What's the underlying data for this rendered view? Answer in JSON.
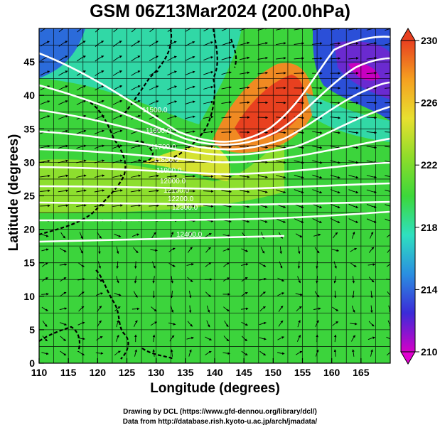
{
  "title": "GSM 06Z13Mar2024 (200.0hPa)",
  "x_axis": {
    "label": "Longitude (degrees)",
    "range": [
      110,
      170
    ],
    "ticks": [
      110,
      115,
      120,
      125,
      130,
      135,
      140,
      145,
      150,
      155,
      160,
      165
    ]
  },
  "y_axis": {
    "label": "Latitude  (degrees)",
    "range": [
      0,
      50
    ],
    "ticks": [
      0,
      5,
      10,
      15,
      20,
      25,
      30,
      35,
      40,
      45
    ]
  },
  "colorbar": {
    "ticks": [
      210,
      214,
      218,
      222,
      226,
      230
    ],
    "range": [
      210,
      230
    ],
    "colors": [
      "#d400c8",
      "#3b2bd8",
      "#2a8fe0",
      "#2fe0c0",
      "#3cd83a",
      "#8fdc2a",
      "#e8e030",
      "#f5a020",
      "#e84020"
    ]
  },
  "contour_labels": [
    "11500.0",
    "11600.0",
    "11700.0",
    "11800.0",
    "11900.0",
    "12000.0",
    "12100.0",
    "12200.0",
    "12300.0",
    "12400.0"
  ],
  "credits": {
    "line1": "Drawing by DCL (https://www.gfd-dennou.org/library/dcl/)",
    "line2": "Data from http://database.rish.kyoto-u.ac.jp/arch/jmadata/"
  }
}
